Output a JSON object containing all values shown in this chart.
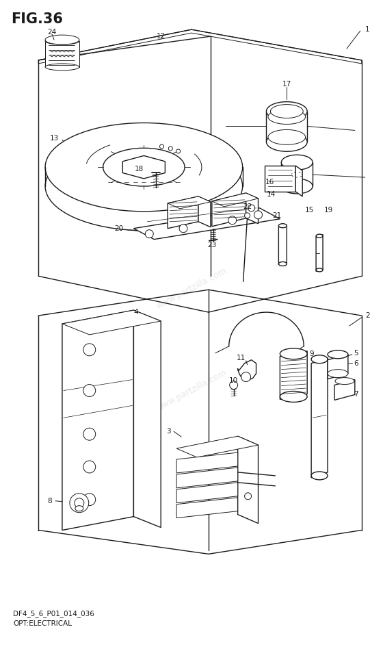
{
  "title": "FIG.36",
  "subtitle1": "DF4_5_6_P01_014_036",
  "subtitle2": "OPT:ELECTRICAL",
  "bg_color": "#ffffff",
  "lc": "#1a1a1a",
  "watermark": "www.partzilla.com",
  "fig_width": 5.6,
  "fig_height": 9.51
}
